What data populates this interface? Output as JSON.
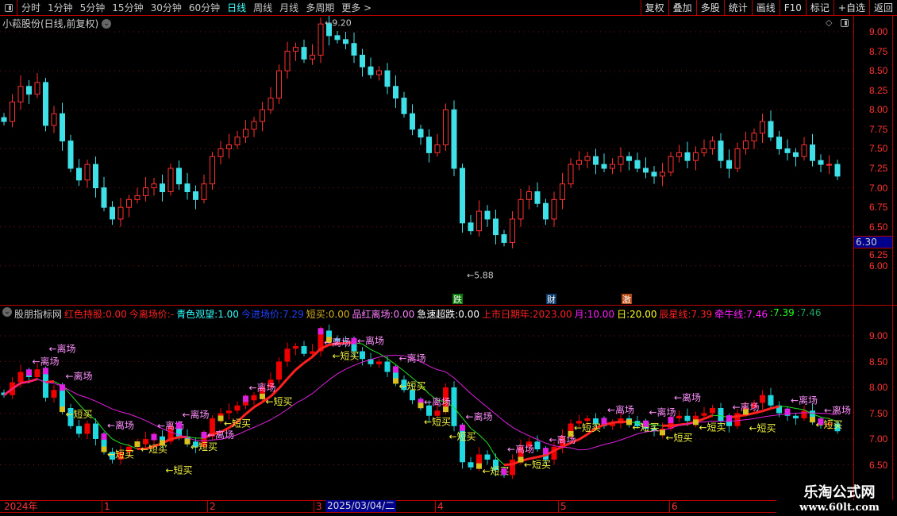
{
  "toolbar": {
    "tabs": [
      "分时",
      "1分钟",
      "5分钟",
      "15分钟",
      "30分钟",
      "60分钟",
      "日线",
      "周线",
      "月线",
      "多周期",
      "更多 >"
    ],
    "active": "日线",
    "right_buttons": [
      "复权",
      "叠加",
      "多股",
      "统计",
      "画线",
      "F10",
      "标记",
      "+自选",
      "返回"
    ]
  },
  "stock": {
    "title": "小菘股份(日线,前复权)"
  },
  "main_axis": {
    "ticks": [
      "9.00",
      "8.75",
      "8.50",
      "8.25",
      "8.00",
      "7.75",
      "7.50",
      "7.25",
      "7.00",
      "6.75",
      "6.50",
      "6.25",
      "6.00"
    ],
    "current_price": "6.30"
  },
  "markers": {
    "high": "9.20",
    "low": "5.88",
    "tags": [
      {
        "text": "跌",
        "color": "#0a7a0a"
      },
      {
        "text": "财",
        "color": "#0a3a6a"
      },
      {
        "text": "激",
        "color": "#b5450f"
      }
    ]
  },
  "indicator": {
    "name": "股朋指标网",
    "items": [
      {
        "label": "红色持股:",
        "value": "0.00",
        "color": "#ff2020"
      },
      {
        "label": "今离场价:",
        "value": "-",
        "color": "#ff2020"
      },
      {
        "label": "青色观望:",
        "value": "1.00",
        "color": "#30ffff"
      },
      {
        "label": "今进场价:",
        "value": "7.29",
        "color": "#2040ff"
      },
      {
        "label": "短买:",
        "value": "0.00",
        "color": "#d8b020"
      },
      {
        "label": "品红离场:",
        "value": "0.00",
        "color": "#ff80ff"
      },
      {
        "label": "急速超跌:",
        "value": "0.00",
        "color": "#ffffff"
      },
      {
        "label": "上市日期年:",
        "value": "2023.00",
        "color": "#ff2020"
      },
      {
        "label": "月:",
        "value": "10.00",
        "color": "#ff20ff"
      },
      {
        "label": "日:",
        "value": "20.00",
        "color": "#ffff20"
      },
      {
        "label": "辰星线:",
        "value": "7.39",
        "color": "#ff2020"
      },
      {
        "label": "牵牛线:",
        "value": "7.46",
        "color": "#ff20ff"
      },
      {
        "label": ":",
        "value": "7.39",
        "color": "#20ff20"
      },
      {
        "label": ":",
        "value": "7.46",
        "color": "#20a060"
      }
    ],
    "ticks": [
      "9.00",
      "8.50",
      "8.00",
      "7.50",
      "7.00",
      "6.50"
    ],
    "exit_label": "←离场",
    "buy_label": "←短买"
  },
  "chart_data": {
    "type": "candlestick",
    "ylim_main": [
      5.8,
      9.3
    ],
    "ylim_indicator": [
      6.3,
      9.3
    ],
    "close": [
      7.85,
      8.1,
      8.3,
      8.2,
      8.35,
      7.8,
      7.95,
      7.6,
      7.25,
      7.1,
      7.3,
      7.0,
      6.75,
      6.6,
      6.75,
      6.85,
      6.9,
      7.0,
      7.05,
      6.95,
      7.25,
      7.05,
      6.95,
      6.85,
      7.05,
      7.4,
      7.5,
      7.55,
      7.65,
      7.75,
      7.85,
      8.0,
      8.15,
      8.5,
      8.75,
      8.8,
      8.65,
      8.7,
      9.1,
      8.95,
      8.9,
      8.85,
      8.7,
      8.55,
      8.45,
      8.5,
      8.3,
      8.15,
      7.95,
      7.75,
      7.65,
      7.45,
      7.55,
      8.0,
      7.25,
      6.55,
      6.45,
      6.7,
      6.6,
      6.4,
      6.3,
      6.6,
      6.85,
      6.95,
      6.8,
      6.6,
      6.85,
      7.05,
      7.3,
      7.35,
      7.4,
      7.3,
      7.25,
      7.3,
      7.4,
      7.35,
      7.25,
      7.2,
      7.15,
      7.2,
      7.4,
      7.45,
      7.35,
      7.45,
      7.5,
      7.6,
      7.35,
      7.25,
      7.5,
      7.6,
      7.7,
      7.85,
      7.65,
      7.5,
      7.45,
      7.4,
      7.55,
      7.35,
      7.3,
      7.3,
      7.15
    ],
    "exit_signals": [
      3,
      5,
      7,
      12,
      18,
      21,
      24,
      29,
      38,
      42,
      47,
      50,
      55,
      60,
      65,
      72,
      77,
      80,
      87,
      94,
      98
    ],
    "buy_signals": [
      7,
      12,
      16,
      19,
      22,
      26,
      31,
      39,
      47,
      50,
      53,
      57,
      62,
      68,
      75,
      79,
      83,
      89,
      97
    ]
  },
  "dates": {
    "labels": [
      "2024年",
      "1",
      "2",
      "3",
      "4",
      "5",
      "6"
    ],
    "highlight": "2025/03/04/二"
  },
  "logo": {
    "name": "乐淘公式网",
    "url": "www.60lt.com"
  }
}
